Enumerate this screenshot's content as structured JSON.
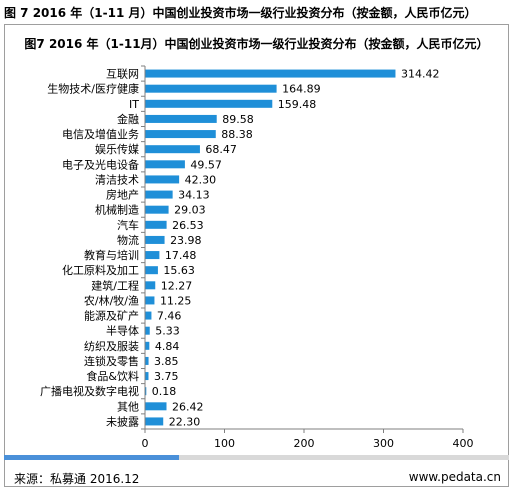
{
  "outer_title": "图 7 2016 年（1-11 月）中国创业投资市场一级行业投资分布（按金额，人民币亿元）",
  "footer": {
    "source": "来源：私募通 2016.12",
    "site": "www.pedata.cn"
  },
  "colors": {
    "bar": "#1f8fd8",
    "axis": "#7f7f7f",
    "accent": "#4a90d9"
  },
  "chart_data": {
    "type": "bar",
    "orientation": "horizontal",
    "title": "图7 2016 年（1-11月）中国创业投资市场一级行业投资分布（按金额，人民币亿元）",
    "categories": [
      "互联网",
      "生物技术/医疗健康",
      "IT",
      "金融",
      "电信及增值业务",
      "娱乐传媒",
      "电子及光电设备",
      "清洁技术",
      "房地产",
      "机械制造",
      "汽车",
      "物流",
      "教育与培训",
      "化工原料及加工",
      "建筑/工程",
      "农/林/牧/渔",
      "能源及矿产",
      "半导体",
      "纺织及服装",
      "连锁及零售",
      "食品&饮料",
      "广播电视及数字电视",
      "其他",
      "未披露"
    ],
    "values": [
      314.42,
      164.89,
      159.48,
      89.58,
      88.38,
      68.47,
      49.57,
      42.3,
      34.13,
      29.03,
      26.53,
      23.98,
      17.48,
      15.63,
      12.27,
      11.25,
      7.46,
      5.33,
      4.84,
      3.85,
      3.75,
      0.18,
      26.42,
      22.3
    ],
    "value_labels": [
      "314.42",
      "164.89",
      "159.48",
      "89.58",
      "88.38",
      "68.47",
      "49.57",
      "42.30",
      "34.13",
      "29.03",
      "26.53",
      "23.98",
      "17.48",
      "15.63",
      "12.27",
      "11.25",
      "7.46",
      "5.33",
      "4.84",
      "3.85",
      "3.75",
      "0.18",
      "26.42",
      "22.30"
    ],
    "xlim": [
      0,
      400
    ],
    "xticks": [
      "0",
      "100",
      "200",
      "300",
      "400"
    ],
    "xtick_values": [
      0,
      100,
      200,
      300,
      400
    ],
    "grid": false,
    "legend": "none"
  }
}
